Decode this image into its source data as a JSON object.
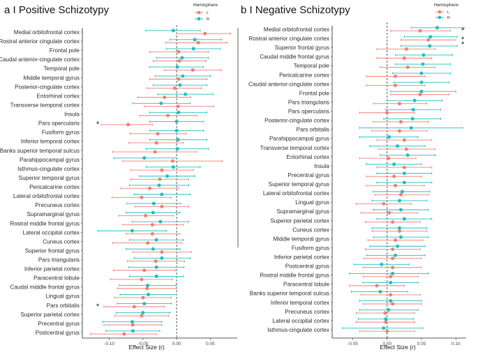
{
  "colors": {
    "L": "#f07f72",
    "R": "#1fbfc3"
  },
  "chart_data": [
    {
      "type": "forest",
      "title": "a I Positive Schizotypy",
      "xlabel": "Effect Size (r)",
      "xlim": [
        -0.14,
        0.09
      ],
      "xticks": [
        -0.1,
        -0.05,
        0.0,
        0.05
      ],
      "xtick_labels": [
        "-0.10",
        "-0.05",
        "0.00",
        "0.05"
      ],
      "legend": {
        "title": "Hemisphere",
        "entries": [
          "L",
          "R"
        ],
        "placement": "top-right"
      },
      "categories": [
        "Medial orbitofrontal cortex",
        "Rostral anterior cingulate cortex",
        "Frontal pole",
        "Caudal anterior-cingulate cortex",
        "Temporal pole",
        "Middle temporal gyrus",
        "Posterior-cingulate cortex",
        "Entorhinal cortex",
        "Transverse temporal cortex",
        "Insula",
        "Pars opercularis",
        "Fusiform gyrus",
        "Inferior temporal cortex",
        "Banks superior temporal sulcus",
        "Parahippocampal gyrus",
        "Isthmus-cingulate cortex",
        "Superior temporal gyrus",
        "Pericalcarine cortex",
        "Lateral orbitofrontal cortex",
        "Precuneus cortex",
        "Supramarginal gyrus",
        "Rostral middle frontal gyrus",
        "Lateral occipital cortex",
        "Cuneus cortex",
        "Superior frontal gyrus",
        "Pars triangularis",
        "Inferior parietal cortex",
        "Paracentral lobule",
        "Caudal middle frontal gyrus",
        "Lingual gyrus",
        "Pars orbitalis",
        "Superior parietal cortex",
        "Precentral gyrus",
        "Postcentral gyrus"
      ],
      "series": [
        {
          "name": "L",
          "values": [
            0.042,
            0.032,
            0.003,
            0.004,
            0.024,
            0.003,
            -0.003,
            -0.018,
            0.002,
            -0.013,
            -0.072,
            -0.028,
            -0.03,
            -0.032,
            -0.006,
            -0.022,
            -0.025,
            -0.04,
            -0.052,
            -0.022,
            -0.046,
            -0.036,
            -0.036,
            -0.043,
            -0.022,
            -0.031,
            -0.048,
            -0.052,
            -0.044,
            -0.05,
            -0.063,
            -0.052,
            -0.065,
            -0.078
          ],
          "ci_low": [
            0.0,
            -0.016,
            -0.04,
            -0.035,
            -0.018,
            -0.04,
            -0.044,
            -0.058,
            -0.048,
            -0.055,
            -0.112,
            -0.069,
            -0.071,
            -0.095,
            -0.08,
            -0.068,
            -0.068,
            -0.083,
            -0.096,
            -0.062,
            -0.086,
            -0.08,
            -0.075,
            -0.095,
            -0.065,
            -0.073,
            -0.094,
            -0.098,
            -0.088,
            -0.092,
            -0.108,
            -0.092,
            -0.108,
            -0.128
          ],
          "ci_high": [
            0.08,
            0.075,
            0.047,
            0.044,
            0.066,
            0.045,
            0.037,
            0.021,
            0.055,
            0.03,
            -0.036,
            0.014,
            0.01,
            0.03,
            0.068,
            0.025,
            0.018,
            0.003,
            -0.008,
            0.018,
            -0.005,
            0.01,
            0.005,
            0.008,
            0.022,
            0.012,
            -0.002,
            -0.006,
            0.0,
            -0.008,
            -0.018,
            -0.012,
            -0.022,
            -0.03
          ]
        },
        {
          "name": "R",
          "values": [
            -0.005,
            0.027,
            0.025,
            0.008,
            0.001,
            0.009,
            0.005,
            0.013,
            -0.023,
            0.003,
            0.0,
            0.0,
            0.002,
            0.001,
            -0.048,
            -0.005,
            -0.014,
            -0.026,
            -0.022,
            -0.034,
            -0.035,
            -0.024,
            -0.066,
            -0.03,
            -0.035,
            -0.022,
            -0.03,
            -0.03,
            -0.043,
            -0.042,
            -0.048,
            -0.05,
            -0.066,
            -0.065
          ],
          "ci_low": [
            -0.046,
            -0.01,
            -0.015,
            -0.03,
            -0.04,
            -0.032,
            -0.035,
            -0.028,
            -0.065,
            -0.04,
            -0.04,
            -0.04,
            -0.04,
            -0.045,
            -0.093,
            -0.045,
            -0.055,
            -0.07,
            -0.063,
            -0.074,
            -0.075,
            -0.066,
            -0.117,
            -0.07,
            -0.075,
            -0.063,
            -0.071,
            -0.07,
            -0.085,
            -0.084,
            -0.088,
            -0.09,
            -0.11,
            -0.105
          ],
          "ci_high": [
            0.035,
            0.067,
            0.065,
            0.047,
            0.04,
            0.05,
            0.045,
            0.054,
            0.02,
            0.045,
            0.04,
            0.04,
            0.045,
            0.047,
            0.0,
            0.035,
            0.027,
            0.018,
            0.02,
            0.006,
            0.005,
            0.018,
            -0.015,
            0.01,
            0.005,
            0.02,
            0.011,
            0.01,
            -0.001,
            0.0,
            -0.008,
            -0.01,
            -0.022,
            -0.025
          ]
        }
      ],
      "annotations": [
        {
          "category": "Pars opercularis",
          "text": "*"
        },
        {
          "category": "Pars orbitalis",
          "text": "*"
        }
      ]
    },
    {
      "type": "forest",
      "title": "b I Negative Schizotypy",
      "xlabel": "Effect Size (r)",
      "xlim": [
        -0.08,
        0.115
      ],
      "xticks": [
        -0.05,
        0.0,
        0.05,
        0.1
      ],
      "xtick_labels": [
        "-0.05",
        "0.00",
        "0.05",
        "0.10"
      ],
      "legend": {
        "title": "Hemisphere",
        "entries": [
          "L",
          "R"
        ],
        "placement": "top-right"
      },
      "categories": [
        "Medial orbitofrontal cortex",
        "Rostral anterior cingulate cortex",
        "Superior frontal gyrus",
        "Caudal middle frontal gyrus",
        "Temporal pole",
        "Pericalcarine cortex",
        "Caudal anterior-cingulate cortex",
        "Frontal pole",
        "Pars triangularis",
        "Pars opercularis",
        "Posterior-cingulate cortex",
        "Pars orbitalis",
        "Parahippocampal gyrus",
        "Transverse temporal cortex",
        "Entorhinal cortex",
        "Insula",
        "Precentral gyrus",
        "Superior temporal gyrus",
        "Lateral orbitofrontal cortex",
        "Lingual gyrus",
        "Supramarginal gyrus",
        "Superior parietal cortex",
        "Cuneus cortex",
        "Middle temporal gyrus",
        "Fusiform gyrus",
        "Inferior parietal cortex",
        "Postcentral gyrus",
        "Rostral middle frontal gyrus",
        "Paracentral lobule",
        "Banks superior temporal sulcus",
        "Inferior temporal cortex",
        "Precuneus cortex",
        "Lateral occipital cortex",
        "Isthmus-cingulate cortex"
      ],
      "series": [
        {
          "name": "L",
          "values": [
            0.048,
            0.06,
            0.028,
            0.025,
            0.03,
            0.012,
            0.012,
            0.048,
            0.018,
            0.0,
            0.02,
            0.018,
            0.025,
            0.028,
            0.002,
            0.025,
            0.01,
            0.012,
            0.02,
            -0.005,
            0.003,
            0.008,
            0.018,
            0.012,
            0.008,
            0.008,
            0.008,
            0.005,
            -0.015,
            0.005,
            0.008,
            -0.003,
            -0.002,
            0.0
          ],
          "ci_low": [
            0.005,
            0.02,
            -0.015,
            -0.015,
            -0.01,
            -0.03,
            -0.03,
            0.005,
            -0.02,
            -0.04,
            -0.02,
            -0.022,
            -0.015,
            -0.012,
            -0.04,
            -0.015,
            -0.03,
            -0.03,
            -0.018,
            -0.045,
            -0.038,
            -0.032,
            -0.022,
            -0.028,
            -0.032,
            -0.034,
            -0.035,
            -0.035,
            -0.055,
            -0.038,
            -0.035,
            -0.045,
            -0.045,
            -0.04
          ],
          "ci_high": [
            0.092,
            0.1,
            0.07,
            0.065,
            0.07,
            0.055,
            0.055,
            0.09,
            0.058,
            0.04,
            0.06,
            0.058,
            0.065,
            0.07,
            0.042,
            0.065,
            0.05,
            0.054,
            0.06,
            0.035,
            0.044,
            0.048,
            0.058,
            0.052,
            0.048,
            0.05,
            0.05,
            0.045,
            0.025,
            0.048,
            0.05,
            0.04,
            0.04,
            0.04
          ]
        },
        {
          "name": "R",
          "values": [
            0.073,
            0.063,
            0.062,
            0.053,
            0.052,
            0.05,
            0.05,
            0.05,
            0.04,
            0.038,
            0.037,
            0.035,
            0.003,
            0.015,
            0.03,
            0.01,
            0.025,
            0.025,
            0.022,
            0.018,
            0.02,
            0.025,
            0.018,
            0.02,
            0.015,
            0.012,
            -0.008,
            0.008,
            0.005,
            -0.01,
            0.005,
            0.002,
            -0.002,
            -0.005
          ],
          "ci_low": [
            0.035,
            0.025,
            0.02,
            0.012,
            0.012,
            0.008,
            0.01,
            0.005,
            0.0,
            -0.002,
            -0.005,
            -0.04,
            -0.04,
            -0.025,
            -0.01,
            -0.03,
            -0.015,
            -0.015,
            -0.02,
            -0.022,
            -0.02,
            -0.015,
            -0.022,
            -0.02,
            -0.025,
            -0.03,
            -0.048,
            -0.055,
            -0.035,
            -0.052,
            -0.04,
            -0.04,
            -0.042,
            -0.065
          ],
          "ci_high": [
            0.112,
            0.102,
            0.102,
            0.095,
            0.092,
            0.092,
            0.09,
            0.1,
            0.08,
            0.078,
            0.078,
            0.11,
            0.045,
            0.055,
            0.07,
            0.05,
            0.065,
            0.065,
            0.062,
            0.058,
            0.06,
            0.065,
            0.058,
            0.06,
            0.055,
            0.055,
            0.032,
            0.06,
            0.045,
            0.03,
            0.05,
            0.045,
            0.038,
            0.052
          ]
        }
      ],
      "annotations": [
        {
          "category": "Medial orbitofrontal cortex",
          "text": "*"
        },
        {
          "category": "Rostral anterior cingulate cortex",
          "text": "*\n*"
        }
      ]
    }
  ]
}
